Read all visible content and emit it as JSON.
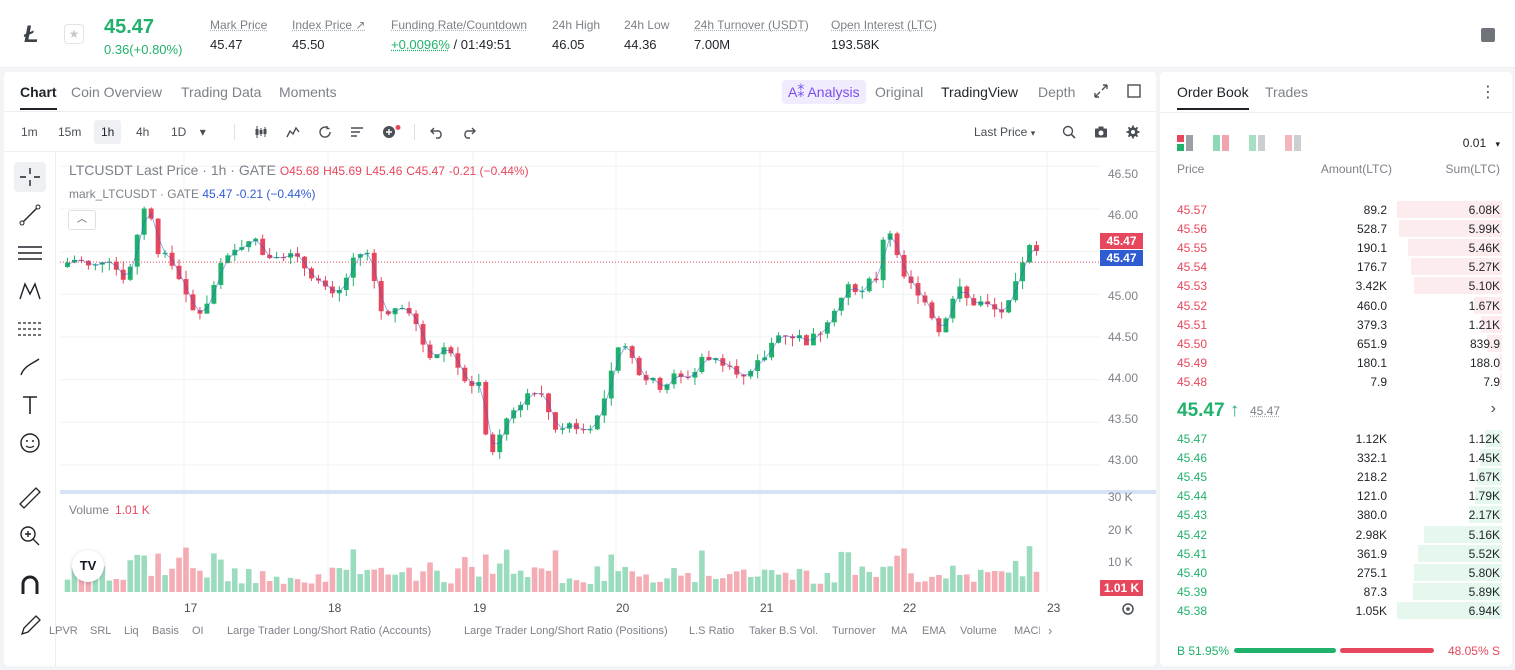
{
  "ticker": {
    "logo": "Ł",
    "last_price": "45.47",
    "change": "0.36(+0.80%)",
    "stats": [
      {
        "label": "Mark Price",
        "value": "45.47"
      },
      {
        "label": "Index Price ↗",
        "value": "45.50"
      },
      {
        "label": "Funding Rate/Countdown",
        "value_rate": "+0.0096%",
        "value_countdown": "/ 01:49:51"
      },
      {
        "label": "24h High",
        "value": "46.05"
      },
      {
        "label": "24h Low",
        "value": "44.36"
      },
      {
        "label": "24h Turnover (USDT)",
        "value": "7.00M"
      },
      {
        "label": "Open Interest (LTC)",
        "value": "193.58K"
      }
    ]
  },
  "chart_tabs": [
    "Chart",
    "Coin Overview",
    "Trading Data",
    "Moments"
  ],
  "view_tabs": {
    "ai": "A⁑ Analysis",
    "original": "Original",
    "tradingview": "TradingView",
    "depth": "Depth"
  },
  "timeframes": [
    "1m",
    "15m",
    "1h",
    "4h",
    "1D"
  ],
  "price_type": "Last Price",
  "legend": {
    "title": "LTCUSDT Last Price · 1h · GATE",
    "o": "O45.68",
    "h": "H45.69",
    "l": "L45.46",
    "c": "C45.47",
    "chg": "-0.21 (−0.44%)",
    "mark_name": "mark_LTCUSDT · GATE",
    "mark_val": "45.47 -0.21 (−0.44%)",
    "volume_label": "Volume",
    "volume_val": "1.01 K"
  },
  "chart_data": {
    "type": "candlestick",
    "price_axis": [
      "46.50",
      "46.00",
      "45.50",
      "45.00",
      "44.50",
      "44.00",
      "43.50",
      "43.00"
    ],
    "volume_axis": [
      "30 K",
      "20 K",
      "10 K"
    ],
    "x_labels": [
      "17",
      "18",
      "19",
      "20",
      "21",
      "22",
      "23"
    ],
    "ylim": [
      42.8,
      46.55
    ],
    "last_price_tag": "45.47",
    "mark_price_tag": "45.47",
    "volume_tag": "1.01 K",
    "close_path": [
      45.32,
      45.38,
      45.42,
      45.36,
      45.28,
      45.4,
      45.45,
      45.3,
      45.2,
      45.35,
      45.9,
      46.1,
      45.55,
      45.45,
      45.35,
      45.2,
      44.9,
      44.75,
      44.85,
      45.0,
      45.3,
      45.4,
      45.5,
      45.6,
      45.7,
      45.55,
      45.42,
      45.5,
      45.48,
      45.45,
      45.38,
      45.3,
      45.2,
      45.1,
      44.95,
      45.0,
      45.2,
      45.4,
      45.5,
      45.45,
      44.9,
      44.7,
      44.85,
      44.9,
      44.8,
      44.6,
      44.35,
      44.25,
      44.4,
      44.35,
      44.2,
      44.0,
      43.95,
      44.0,
      43.0,
      43.2,
      43.5,
      43.65,
      43.75,
      43.85,
      43.9,
      43.75,
      43.5,
      43.35,
      43.5,
      43.45,
      43.4,
      43.5,
      43.6,
      43.9,
      44.3,
      44.4,
      44.25,
      44.1,
      44.0,
      43.95,
      43.9,
      44.05,
      44.0,
      44.05,
      44.1,
      44.3,
      44.25,
      44.2,
      44.25,
      44.15,
      44.0,
      44.05,
      44.2,
      44.3,
      44.5,
      44.55,
      44.52,
      44.5,
      44.45,
      44.5,
      44.6,
      44.8,
      44.9,
      45.05,
      45.1,
      45.0,
      45.15,
      45.2,
      45.9,
      45.6,
      45.2,
      45.1,
      45.05,
      44.9,
      44.7,
      44.55,
      44.8,
      45.1,
      44.95,
      44.9,
      44.9,
      44.85,
      44.8,
      44.8,
      44.95,
      45.35,
      45.55,
      45.47
    ]
  },
  "indicators": [
    "LPVR",
    "SRL",
    "Liq",
    "Basis",
    "OI",
    "Large Trader Long/Short Ratio (Accounts)",
    "Large Trader Long/Short Ratio (Positions)",
    "L.S Ratio",
    "Taker B.S Vol.",
    "Turnover",
    "MA",
    "EMA",
    "Volume",
    "MACD"
  ],
  "orderbook": {
    "tabs": [
      "Order Book",
      "Trades"
    ],
    "precision": "0.01",
    "headers": {
      "price": "Price",
      "amount": "Amount(LTC)",
      "sum": "Sum(LTC)"
    },
    "asks": [
      {
        "price": "45.57",
        "amount": "89.2",
        "sum": "6.08K",
        "depth": 1.0
      },
      {
        "price": "45.56",
        "amount": "528.7",
        "sum": "5.99K",
        "depth": 0.985
      },
      {
        "price": "45.55",
        "amount": "190.1",
        "sum": "5.46K",
        "depth": 0.9
      },
      {
        "price": "45.54",
        "amount": "176.7",
        "sum": "5.27K",
        "depth": 0.87
      },
      {
        "price": "45.53",
        "amount": "3.42K",
        "sum": "5.10K",
        "depth": 0.84
      },
      {
        "price": "45.52",
        "amount": "460.0",
        "sum": "1.67K",
        "depth": 0.27
      },
      {
        "price": "45.51",
        "amount": "379.3",
        "sum": "1.21K",
        "depth": 0.2
      },
      {
        "price": "45.50",
        "amount": "651.9",
        "sum": "839.9",
        "depth": 0.14
      },
      {
        "price": "45.49",
        "amount": "180.1",
        "sum": "188.0",
        "depth": 0.03
      },
      {
        "price": "45.48",
        "amount": "7.9",
        "sum": "7.9",
        "depth": 0.005
      }
    ],
    "mid": {
      "price": "45.47 ↑",
      "mark": "45.47"
    },
    "bids": [
      {
        "price": "45.47",
        "amount": "1.12K",
        "sum": "1.12K",
        "depth": 0.16
      },
      {
        "price": "45.46",
        "amount": "332.1",
        "sum": "1.45K",
        "depth": 0.21
      },
      {
        "price": "45.45",
        "amount": "218.2",
        "sum": "1.67K",
        "depth": 0.24
      },
      {
        "price": "45.44",
        "amount": "121.0",
        "sum": "1.79K",
        "depth": 0.26
      },
      {
        "price": "45.43",
        "amount": "380.0",
        "sum": "2.17K",
        "depth": 0.31
      },
      {
        "price": "45.42",
        "amount": "2.98K",
        "sum": "5.16K",
        "depth": 0.74
      },
      {
        "price": "45.41",
        "amount": "361.9",
        "sum": "5.52K",
        "depth": 0.8
      },
      {
        "price": "45.40",
        "amount": "275.1",
        "sum": "5.80K",
        "depth": 0.84
      },
      {
        "price": "45.39",
        "amount": "87.3",
        "sum": "5.89K",
        "depth": 0.85
      },
      {
        "price": "45.38",
        "amount": "1.05K",
        "sum": "6.94K",
        "depth": 1.0
      }
    ],
    "buy_ratio": "B 51.95%",
    "sell_ratio": "48.05% S",
    "buy_fraction": 0.5195
  },
  "colors": {
    "up": "#20b26c",
    "down": "#e6475c",
    "mark": "#2f5bd3",
    "accent": "#7a4df0"
  }
}
